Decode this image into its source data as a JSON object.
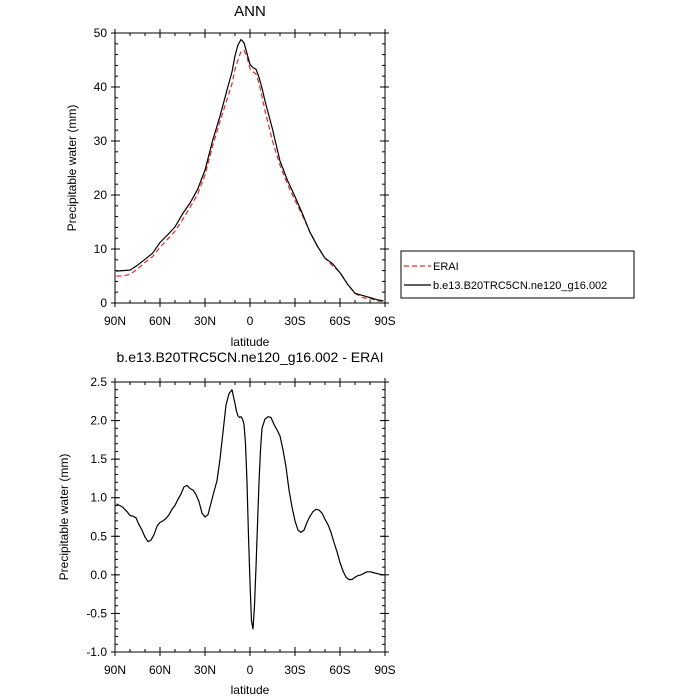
{
  "chart_data": [
    {
      "type": "line",
      "title": "ANN",
      "xlabel": "latitude",
      "ylabel": "Precipitable water (mm)",
      "xlim": [
        90,
        -90
      ],
      "ylim": [
        0,
        50
      ],
      "xticks": [
        90,
        60,
        30,
        0,
        -30,
        -60,
        -90
      ],
      "xtick_labels": [
        "90N",
        "60N",
        "30N",
        "0",
        "30S",
        "60S",
        "90S"
      ],
      "yticks": [
        0,
        10,
        20,
        30,
        40,
        50
      ],
      "ytick_labels": [
        "0",
        "10",
        "20",
        "30",
        "40",
        "50"
      ],
      "legend": {
        "placement": "right-of-plot-bottom",
        "entries": [
          "ERAI",
          "b.e13.B20TRC5CN.ne120_g16.002"
        ]
      },
      "series": [
        {
          "name": "ERAI",
          "color": "#e8262b",
          "dash": true,
          "x": [
            89,
            85,
            80,
            75,
            70,
            65,
            60,
            55,
            50,
            45,
            40,
            35,
            30,
            25,
            20,
            15,
            12,
            10,
            8,
            6,
            4,
            2,
            0,
            -2,
            -4,
            -6,
            -8,
            -10,
            -15,
            -20,
            -25,
            -30,
            -35,
            -40,
            -45,
            -50,
            -55,
            -60,
            -65,
            -70,
            -75,
            -80,
            -85,
            -89
          ],
          "y": [
            5.0,
            5.0,
            5.3,
            6.3,
            7.5,
            8.6,
            10.3,
            11.8,
            13.3,
            15.4,
            17.7,
            20.1,
            23.7,
            29.0,
            33.6,
            38.0,
            40.6,
            43.3,
            45.0,
            46.6,
            46.8,
            45.6,
            43.4,
            42.8,
            42.4,
            40.7,
            38.3,
            35.6,
            30.0,
            25.5,
            22.0,
            19.0,
            16.2,
            13.1,
            10.5,
            8.3,
            6.9,
            5.7,
            3.5,
            1.8,
            1.0,
            0.8,
            0.4,
            0.2
          ]
        },
        {
          "name": "b.e13.B20TRC5CN.ne120_g16.002",
          "color": "#000000",
          "dash": false,
          "x": [
            89,
            85,
            80,
            75,
            70,
            65,
            60,
            55,
            50,
            45,
            40,
            35,
            30,
            25,
            20,
            15,
            12,
            10,
            8,
            6,
            4,
            2,
            0,
            -2,
            -4,
            -6,
            -8,
            -10,
            -15,
            -20,
            -25,
            -30,
            -35,
            -40,
            -45,
            -50,
            -55,
            -60,
            -65,
            -70,
            -75,
            -80,
            -85,
            -89
          ],
          "y": [
            5.9,
            6.0,
            6.1,
            7.0,
            8.1,
            9.2,
            11.2,
            12.6,
            14.1,
            16.5,
            18.5,
            21.0,
            24.6,
            30.0,
            34.6,
            39.8,
            42.8,
            45.8,
            47.8,
            48.8,
            48.2,
            46.2,
            44.2,
            43.6,
            43.3,
            41.8,
            39.8,
            37.4,
            32.2,
            26.3,
            22.7,
            19.7,
            16.5,
            13.1,
            10.5,
            8.3,
            7.3,
            5.6,
            3.5,
            1.8,
            1.4,
            1.0,
            0.6,
            0.4
          ]
        }
      ]
    },
    {
      "type": "line",
      "title": "b.e13.B20TRC5CN.ne120_g16.002 - ERAI",
      "xlabel": "latitude",
      "ylabel": "Precipitable water (mm)",
      "xlim": [
        90,
        -90
      ],
      "ylim": [
        -1.0,
        2.5
      ],
      "xticks": [
        90,
        60,
        30,
        0,
        -30,
        -60,
        -90
      ],
      "xtick_labels": [
        "90N",
        "60N",
        "30N",
        "0",
        "30S",
        "60S",
        "90S"
      ],
      "yticks": [
        -1.0,
        -0.5,
        0.0,
        0.5,
        1.0,
        1.5,
        2.0,
        2.5
      ],
      "ytick_labels": [
        "-1.0",
        "-0.5",
        "0.0",
        "0.5",
        "1.0",
        "1.5",
        "2.0",
        "2.5"
      ],
      "series": [
        {
          "name": "b.e13.B20TRC5CN.ne120_g16.002 - ERAI",
          "color": "#000000",
          "dash": false,
          "x": [
            89,
            85,
            82,
            80,
            78,
            76,
            74,
            72,
            70,
            68,
            66,
            64,
            62,
            60,
            58,
            56,
            54,
            52,
            50,
            48,
            46,
            44,
            42,
            40,
            38,
            36,
            34,
            32,
            30,
            28,
            26,
            24,
            22,
            20,
            18,
            16,
            14,
            12,
            10,
            9,
            8,
            7,
            6,
            5,
            4,
            3,
            2,
            1,
            0,
            -1,
            -2,
            -3,
            -4,
            -5,
            -6,
            -7,
            -8,
            -10,
            -12,
            -14,
            -16,
            -18,
            -20,
            -22,
            -24,
            -26,
            -28,
            -30,
            -32,
            -34,
            -36,
            -38,
            -40,
            -42,
            -44,
            -46,
            -48,
            -50,
            -52,
            -54,
            -56,
            -58,
            -60,
            -62,
            -64,
            -66,
            -68,
            -70,
            -72,
            -74,
            -76,
            -78,
            -80,
            -82,
            -84,
            -86,
            -89
          ],
          "y": [
            0.92,
            0.88,
            0.82,
            0.77,
            0.76,
            0.74,
            0.65,
            0.58,
            0.49,
            0.43,
            0.45,
            0.52,
            0.63,
            0.68,
            0.7,
            0.73,
            0.78,
            0.85,
            0.9,
            0.98,
            1.05,
            1.14,
            1.16,
            1.12,
            1.1,
            1.04,
            0.95,
            0.8,
            0.75,
            0.78,
            0.93,
            1.08,
            1.22,
            1.5,
            1.85,
            2.2,
            2.35,
            2.4,
            2.22,
            2.12,
            2.06,
            2.04,
            2.05,
            2.02,
            1.95,
            1.7,
            1.2,
            0.5,
            -0.1,
            -0.6,
            -0.7,
            -0.4,
            0.1,
            0.65,
            1.2,
            1.62,
            1.9,
            2.02,
            2.05,
            2.04,
            1.95,
            1.88,
            1.8,
            1.62,
            1.4,
            1.1,
            0.88,
            0.7,
            0.58,
            0.55,
            0.58,
            0.68,
            0.76,
            0.82,
            0.85,
            0.84,
            0.8,
            0.72,
            0.65,
            0.55,
            0.42,
            0.3,
            0.16,
            0.05,
            -0.03,
            -0.06,
            -0.06,
            -0.03,
            -0.01,
            0.0,
            0.02,
            0.04,
            0.04,
            0.03,
            0.02,
            0.01,
            0.0
          ]
        }
      ]
    }
  ]
}
